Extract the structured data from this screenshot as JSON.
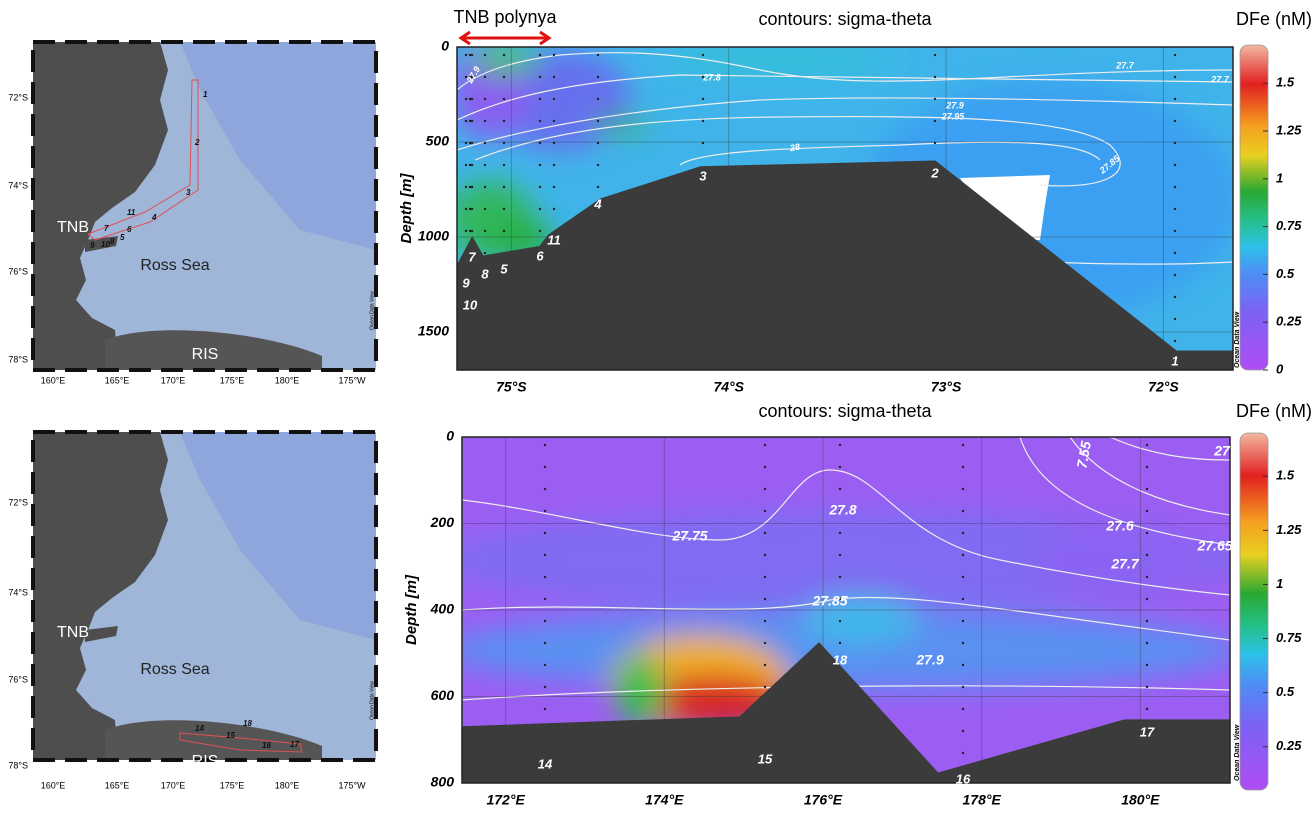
{
  "maps": [
    {
      "lat_labels": [
        "72°S",
        "74°S",
        "76°S",
        "78°S"
      ],
      "lon_labels": [
        "160°E",
        "165°E",
        "170°E",
        "175°E",
        "180°E",
        "175°W"
      ],
      "places": [
        "TNB",
        "Ross Sea",
        "RIS"
      ],
      "stations": [
        "1",
        "2",
        "3",
        "4",
        "5",
        "6",
        "7",
        "8",
        "9",
        "10",
        "11"
      ],
      "credit": "Ocean Data View"
    },
    {
      "lat_labels": [
        "72°S",
        "74°S",
        "76°S",
        "78°S"
      ],
      "lon_labels": [
        "160°E",
        "165°E",
        "170°E",
        "175°E",
        "180°E",
        "175°W"
      ],
      "places": [
        "TNB",
        "Ross Sea",
        "RIS"
      ],
      "stations": [
        "14",
        "15",
        "18",
        "16",
        "17"
      ],
      "credit": "Ocean Data View"
    }
  ],
  "chart_data": [
    {
      "type": "section",
      "title": "contours: sigma-theta",
      "colorbar_label": "DFe (nM)",
      "y_label": "Depth [m]",
      "annotation": "TNB polynya",
      "watermark": "Ocean Data View",
      "xlim": [
        -75.25,
        -71.68
      ],
      "ylim": [
        0,
        1700
      ],
      "xticks": [
        {
          "value": -75,
          "label": "75°S"
        },
        {
          "value": -74,
          "label": "74°S"
        },
        {
          "value": -73,
          "label": "73°S"
        },
        {
          "value": -72,
          "label": "72°S"
        }
      ],
      "yticks": [
        0,
        500,
        1000,
        1500
      ],
      "clim": [
        0,
        1.7
      ],
      "cticks": [
        0,
        0.25,
        0.5,
        0.75,
        1,
        1.25,
        1.5
      ],
      "bathymetry": {
        "x": [
          -75.25,
          -75.18,
          -75.13,
          -74.87,
          -74.83,
          -74.59,
          -74.13,
          -73.05,
          -71.94,
          -71.68
        ],
        "depth": [
          1150,
          1000,
          1100,
          1050,
          990,
          800,
          630,
          600,
          1600,
          1600
        ]
      },
      "stations": [
        1,
        2,
        3,
        4,
        5,
        6,
        7,
        8,
        9,
        10,
        11
      ],
      "contour_labels": [
        27.9,
        27.8,
        27.7,
        27.7,
        27.9,
        27.95,
        28,
        27.85
      ]
    },
    {
      "type": "section",
      "title": "contours: sigma-theta",
      "colorbar_label": "DFe (nM)",
      "y_label": "Depth [m]",
      "watermark": "Ocean Data View",
      "xlim": [
        171.45,
        181.13
      ],
      "ylim": [
        0,
        800
      ],
      "xticks": [
        {
          "value": 172,
          "label": "172°E"
        },
        {
          "value": 174,
          "label": "174°E"
        },
        {
          "value": 176,
          "label": "176°E"
        },
        {
          "value": 178,
          "label": "178°E"
        },
        {
          "value": 180,
          "label": "180°E"
        }
      ],
      "yticks": [
        0,
        200,
        400,
        600,
        800
      ],
      "clim": [
        0.05,
        1.7
      ],
      "cticks": [
        0.25,
        0.5,
        0.75,
        1,
        1.25,
        1.5
      ],
      "bathymetry": {
        "x": [
          171.45,
          174.95,
          175.95,
          177.45,
          179.8,
          181.13
        ],
        "depth": [
          670,
          647,
          476,
          777,
          654,
          654
        ]
      },
      "stations": [
        14,
        15,
        16,
        17,
        18
      ],
      "contour_labels": [
        7.55,
        27,
        27.6,
        27.65,
        27.7,
        27.75,
        27.8,
        27.85,
        27.9
      ]
    }
  ]
}
